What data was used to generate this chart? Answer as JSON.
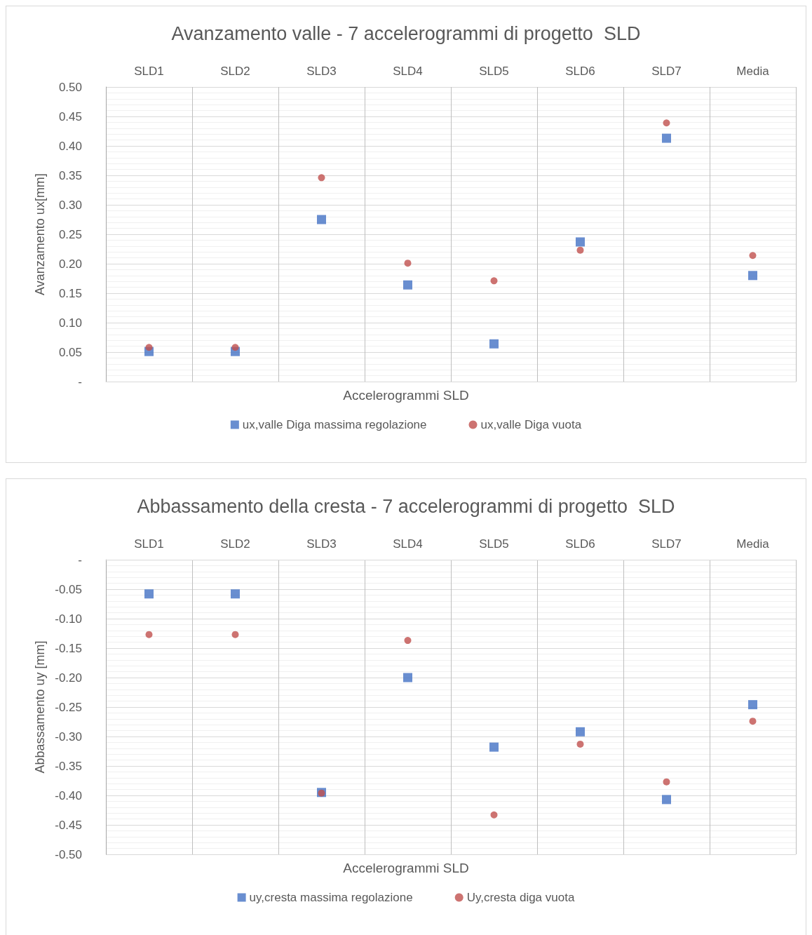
{
  "chart_data": [
    {
      "type": "scatter",
      "title": "Avanzamento valle - 7 accelerogrammi di progetto  SLD",
      "xlabel": "Accelerogrammi SLD",
      "ylabel": "Avanzamento ux[mm]",
      "categories": [
        "SLD1",
        "SLD2",
        "SLD3",
        "SLD4",
        "SLD5",
        "SLD6",
        "SLD7",
        "Media"
      ],
      "series": [
        {
          "name": "ux,valle Diga massima regolazione",
          "color": "#4472c4",
          "marker": "square",
          "values": [
            0.051,
            0.051,
            0.275,
            0.164,
            0.064,
            0.237,
            0.413,
            0.18
          ]
        },
        {
          "name": "ux,valle Diga vuota",
          "color": "#c0504d",
          "marker": "circle",
          "values": [
            0.058,
            0.058,
            0.346,
            0.201,
            0.171,
            0.223,
            0.439,
            0.214
          ]
        }
      ],
      "ylim": [
        0,
        0.5
      ],
      "yticks": [
        {
          "value": 0,
          "label": "-"
        },
        {
          "value": 0.05,
          "label": "0.05"
        },
        {
          "value": 0.1,
          "label": "0.10"
        },
        {
          "value": 0.15,
          "label": "0.15"
        },
        {
          "value": 0.2,
          "label": "0.20"
        },
        {
          "value": 0.25,
          "label": "0.25"
        },
        {
          "value": 0.3,
          "label": "0.30"
        },
        {
          "value": 0.35,
          "label": "0.35"
        },
        {
          "value": 0.4,
          "label": "0.40"
        },
        {
          "value": 0.45,
          "label": "0.45"
        },
        {
          "value": 0.5,
          "label": "0.50"
        }
      ],
      "grid": true,
      "legend": "bottom"
    },
    {
      "type": "scatter",
      "title": "Abbassamento della cresta - 7 accelerogrammi di progetto  SLD",
      "xlabel": "Accelerogrammi SLD",
      "ylabel": "Abbassamento uy [mm]",
      "categories": [
        "SLD1",
        "SLD2",
        "SLD3",
        "SLD4",
        "SLD5",
        "SLD6",
        "SLD7",
        "Media"
      ],
      "series": [
        {
          "name": "uy,cresta massima regolazione",
          "color": "#4472c4",
          "marker": "square",
          "values": [
            -0.058,
            -0.058,
            -0.395,
            -0.2,
            -0.318,
            -0.292,
            -0.407,
            -0.246
          ]
        },
        {
          "name": "Uy,cresta diga vuota",
          "color": "#c0504d",
          "marker": "circle",
          "values": [
            -0.127,
            -0.127,
            -0.396,
            -0.137,
            -0.433,
            -0.313,
            -0.377,
            -0.274
          ]
        }
      ],
      "ylim": [
        -0.5,
        0
      ],
      "yticks": [
        {
          "value": -0.5,
          "label": "-0.50"
        },
        {
          "value": -0.45,
          "label": "-0.45"
        },
        {
          "value": -0.4,
          "label": "-0.40"
        },
        {
          "value": -0.35,
          "label": "-0.35"
        },
        {
          "value": -0.3,
          "label": "-0.30"
        },
        {
          "value": -0.25,
          "label": "-0.25"
        },
        {
          "value": -0.2,
          "label": "-0.20"
        },
        {
          "value": -0.15,
          "label": "-0.15"
        },
        {
          "value": -0.1,
          "label": "-0.10"
        },
        {
          "value": -0.05,
          "label": "-0.05"
        },
        {
          "value": 0,
          "label": "-"
        }
      ],
      "grid": true,
      "legend": "bottom"
    }
  ]
}
